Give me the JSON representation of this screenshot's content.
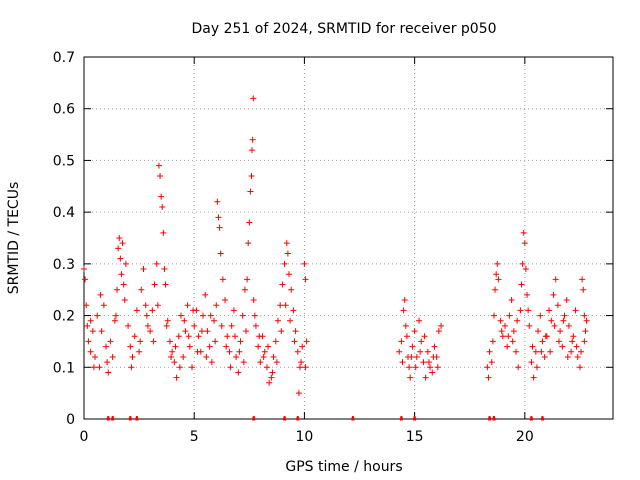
{
  "chart_data": {
    "type": "scatter",
    "title": "Day 251 of 2024, SRMTID for receiver p050",
    "xlabel": "GPS time / hours",
    "ylabel": "SRMTID / TECUs",
    "xlim": [
      0,
      24
    ],
    "ylim": [
      0,
      0.7
    ],
    "x_ticks": [
      0,
      5,
      10,
      15,
      20
    ],
    "y_ticks": [
      0,
      0.1,
      0.2,
      0.3,
      0.4,
      0.5,
      0.6,
      0.7
    ],
    "x_tick_labels": [
      "0",
      "5",
      "10",
      "15",
      "20"
    ],
    "y_tick_labels": [
      "0",
      "0.1",
      "0.2",
      "0.3",
      "0.4",
      "0.5",
      "0.6",
      "0.7"
    ],
    "grid": true,
    "marker": "+",
    "series_color": "#ff0000",
    "series": [
      {
        "name": "SRMTID",
        "active_segments": [
          [
            0.0,
            10.1
          ],
          [
            14.3,
            16.2
          ],
          [
            18.3,
            22.8
          ]
        ],
        "baseline_markers_x": [
          1.1,
          1.3,
          2.1,
          2.4,
          7.7,
          9.1,
          9.7,
          12.2,
          14.4,
          15.0,
          18.4,
          18.6,
          20.3,
          20.8
        ],
        "points": [
          [
            0.0,
            0.29
          ],
          [
            0.05,
            0.27
          ],
          [
            0.1,
            0.22
          ],
          [
            0.15,
            0.18
          ],
          [
            0.2,
            0.15
          ],
          [
            0.3,
            0.13
          ],
          [
            0.4,
            0.17
          ],
          [
            0.5,
            0.12
          ],
          [
            0.6,
            0.2
          ],
          [
            0.7,
            0.1
          ],
          [
            0.8,
            0.17
          ],
          [
            0.9,
            0.22
          ],
          [
            1.0,
            0.14
          ],
          [
            1.1,
            0.09
          ],
          [
            1.2,
            0.15
          ],
          [
            1.3,
            0.12
          ],
          [
            1.4,
            0.19
          ],
          [
            1.5,
            0.25
          ],
          [
            1.55,
            0.33
          ],
          [
            1.6,
            0.35
          ],
          [
            1.65,
            0.31
          ],
          [
            1.7,
            0.28
          ],
          [
            1.75,
            0.34
          ],
          [
            1.8,
            0.26
          ],
          [
            1.9,
            0.3
          ],
          [
            2.0,
            0.18
          ],
          [
            2.1,
            0.14
          ],
          [
            2.2,
            0.12
          ],
          [
            2.3,
            0.16
          ],
          [
            2.4,
            0.21
          ],
          [
            2.5,
            0.13
          ],
          [
            2.6,
            0.25
          ],
          [
            2.7,
            0.29
          ],
          [
            2.8,
            0.22
          ],
          [
            2.9,
            0.18
          ],
          [
            3.0,
            0.17
          ],
          [
            3.1,
            0.21
          ],
          [
            3.2,
            0.26
          ],
          [
            3.3,
            0.3
          ],
          [
            3.4,
            0.49
          ],
          [
            3.45,
            0.47
          ],
          [
            3.5,
            0.43
          ],
          [
            3.55,
            0.41
          ],
          [
            3.6,
            0.36
          ],
          [
            3.65,
            0.29
          ],
          [
            3.7,
            0.26
          ],
          [
            3.8,
            0.19
          ],
          [
            3.9,
            0.15
          ],
          [
            4.0,
            0.13
          ],
          [
            4.1,
            0.11
          ],
          [
            4.2,
            0.08
          ],
          [
            4.3,
            0.16
          ],
          [
            4.4,
            0.2
          ],
          [
            4.5,
            0.12
          ],
          [
            4.6,
            0.17
          ],
          [
            4.7,
            0.22
          ],
          [
            4.8,
            0.14
          ],
          [
            4.9,
            0.1
          ],
          [
            5.0,
            0.18
          ],
          [
            5.1,
            0.21
          ],
          [
            5.2,
            0.16
          ],
          [
            5.3,
            0.13
          ],
          [
            5.4,
            0.2
          ],
          [
            5.5,
            0.24
          ],
          [
            5.6,
            0.17
          ],
          [
            5.7,
            0.14
          ],
          [
            5.8,
            0.11
          ],
          [
            5.9,
            0.19
          ],
          [
            6.0,
            0.22
          ],
          [
            6.05,
            0.42
          ],
          [
            6.1,
            0.39
          ],
          [
            6.15,
            0.37
          ],
          [
            6.2,
            0.32
          ],
          [
            6.3,
            0.27
          ],
          [
            6.4,
            0.23
          ],
          [
            6.5,
            0.16
          ],
          [
            6.6,
            0.13
          ],
          [
            6.7,
            0.18
          ],
          [
            6.8,
            0.21
          ],
          [
            6.9,
            0.12
          ],
          [
            7.0,
            0.09
          ],
          [
            7.1,
            0.15
          ],
          [
            7.2,
            0.2
          ],
          [
            7.3,
            0.25
          ],
          [
            7.4,
            0.27
          ],
          [
            7.45,
            0.34
          ],
          [
            7.5,
            0.38
          ],
          [
            7.55,
            0.44
          ],
          [
            7.6,
            0.47
          ],
          [
            7.62,
            0.52
          ],
          [
            7.65,
            0.54
          ],
          [
            7.68,
            0.62
          ],
          [
            7.7,
            0.23
          ],
          [
            7.8,
            0.18
          ],
          [
            7.9,
            0.14
          ],
          [
            8.0,
            0.11
          ],
          [
            8.1,
            0.16
          ],
          [
            8.2,
            0.13
          ],
          [
            8.3,
            0.1
          ],
          [
            8.4,
            0.07
          ],
          [
            8.5,
            0.08
          ],
          [
            8.6,
            0.12
          ],
          [
            8.7,
            0.15
          ],
          [
            8.8,
            0.19
          ],
          [
            8.9,
            0.22
          ],
          [
            9.0,
            0.26
          ],
          [
            9.1,
            0.3
          ],
          [
            9.2,
            0.34
          ],
          [
            9.25,
            0.32
          ],
          [
            9.3,
            0.28
          ],
          [
            9.4,
            0.25
          ],
          [
            9.5,
            0.21
          ],
          [
            9.6,
            0.17
          ],
          [
            9.7,
            0.13
          ],
          [
            9.75,
            0.05
          ],
          [
            9.8,
            0.1
          ],
          [
            9.9,
            0.14
          ],
          [
            10.0,
            0.3
          ],
          [
            10.05,
            0.27
          ],
          [
            10.1,
            0.15
          ],
          [
            0.3,
            0.19
          ],
          [
            0.45,
            0.1
          ],
          [
            0.75,
            0.24
          ],
          [
            1.05,
            0.11
          ],
          [
            1.45,
            0.2
          ],
          [
            1.85,
            0.23
          ],
          [
            2.15,
            0.1
          ],
          [
            2.55,
            0.15
          ],
          [
            2.85,
            0.2
          ],
          [
            3.15,
            0.15
          ],
          [
            3.35,
            0.22
          ],
          [
            3.75,
            0.18
          ],
          [
            3.95,
            0.12
          ],
          [
            4.15,
            0.14
          ],
          [
            4.35,
            0.1
          ],
          [
            4.55,
            0.19
          ],
          [
            4.75,
            0.16
          ],
          [
            4.95,
            0.21
          ],
          [
            5.15,
            0.13
          ],
          [
            5.35,
            0.17
          ],
          [
            5.55,
            0.12
          ],
          [
            5.75,
            0.2
          ],
          [
            5.95,
            0.15
          ],
          [
            6.25,
            0.18
          ],
          [
            6.45,
            0.14
          ],
          [
            6.65,
            0.1
          ],
          [
            6.85,
            0.16
          ],
          [
            7.05,
            0.13
          ],
          [
            7.25,
            0.11
          ],
          [
            7.35,
            0.17
          ],
          [
            7.75,
            0.2
          ],
          [
            7.95,
            0.16
          ],
          [
            8.15,
            0.12
          ],
          [
            8.35,
            0.14
          ],
          [
            8.55,
            0.09
          ],
          [
            8.75,
            0.11
          ],
          [
            8.95,
            0.17
          ],
          [
            9.15,
            0.22
          ],
          [
            9.35,
            0.19
          ],
          [
            9.55,
            0.15
          ],
          [
            9.85,
            0.11
          ],
          [
            10.05,
            0.1
          ],
          [
            14.3,
            0.13
          ],
          [
            14.4,
            0.15
          ],
          [
            14.5,
            0.21
          ],
          [
            14.55,
            0.23
          ],
          [
            14.6,
            0.18
          ],
          [
            14.7,
            0.12
          ],
          [
            14.75,
            0.1
          ],
          [
            14.8,
            0.08
          ],
          [
            14.9,
            0.14
          ],
          [
            15.0,
            0.17
          ],
          [
            15.1,
            0.12
          ],
          [
            15.2,
            0.19
          ],
          [
            15.3,
            0.15
          ],
          [
            15.4,
            0.11
          ],
          [
            15.5,
            0.08
          ],
          [
            15.6,
            0.13
          ],
          [
            15.7,
            0.1
          ],
          [
            15.8,
            0.09
          ],
          [
            15.9,
            0.14
          ],
          [
            16.0,
            0.12
          ],
          [
            16.1,
            0.17
          ],
          [
            16.2,
            0.18
          ],
          [
            14.45,
            0.11
          ],
          [
            14.65,
            0.16
          ],
          [
            14.85,
            0.12
          ],
          [
            15.05,
            0.1
          ],
          [
            15.25,
            0.13
          ],
          [
            15.45,
            0.16
          ],
          [
            15.65,
            0.11
          ],
          [
            15.85,
            0.12
          ],
          [
            16.05,
            0.1
          ],
          [
            18.3,
            0.1
          ],
          [
            18.35,
            0.08
          ],
          [
            18.4,
            0.13
          ],
          [
            18.5,
            0.11
          ],
          [
            18.6,
            0.2
          ],
          [
            18.65,
            0.25
          ],
          [
            18.7,
            0.28
          ],
          [
            18.75,
            0.3
          ],
          [
            18.8,
            0.27
          ],
          [
            18.9,
            0.19
          ],
          [
            19.0,
            0.16
          ],
          [
            19.1,
            0.18
          ],
          [
            19.2,
            0.14
          ],
          [
            19.3,
            0.2
          ],
          [
            19.4,
            0.23
          ],
          [
            19.5,
            0.17
          ],
          [
            19.6,
            0.13
          ],
          [
            19.7,
            0.1
          ],
          [
            19.8,
            0.21
          ],
          [
            19.85,
            0.26
          ],
          [
            19.9,
            0.3
          ],
          [
            19.95,
            0.36
          ],
          [
            20.0,
            0.34
          ],
          [
            20.05,
            0.29
          ],
          [
            20.1,
            0.24
          ],
          [
            20.2,
            0.18
          ],
          [
            20.3,
            0.11
          ],
          [
            20.4,
            0.08
          ],
          [
            20.5,
            0.13
          ],
          [
            20.6,
            0.17
          ],
          [
            20.7,
            0.2
          ],
          [
            20.8,
            0.15
          ],
          [
            20.9,
            0.12
          ],
          [
            21.0,
            0.16
          ],
          [
            21.1,
            0.21
          ],
          [
            21.2,
            0.19
          ],
          [
            21.3,
            0.24
          ],
          [
            21.4,
            0.27
          ],
          [
            21.5,
            0.22
          ],
          [
            21.6,
            0.17
          ],
          [
            21.7,
            0.14
          ],
          [
            21.8,
            0.2
          ],
          [
            21.9,
            0.23
          ],
          [
            22.0,
            0.18
          ],
          [
            22.1,
            0.13
          ],
          [
            22.2,
            0.16
          ],
          [
            22.3,
            0.21
          ],
          [
            22.4,
            0.12
          ],
          [
            22.5,
            0.1
          ],
          [
            22.6,
            0.27
          ],
          [
            22.65,
            0.25
          ],
          [
            22.7,
            0.2
          ],
          [
            22.75,
            0.17
          ],
          [
            22.8,
            0.19
          ],
          [
            18.55,
            0.15
          ],
          [
            18.95,
            0.17
          ],
          [
            19.25,
            0.16
          ],
          [
            19.45,
            0.15
          ],
          [
            19.65,
            0.19
          ],
          [
            20.15,
            0.21
          ],
          [
            20.35,
            0.14
          ],
          [
            20.55,
            0.1
          ],
          [
            20.75,
            0.13
          ],
          [
            20.95,
            0.16
          ],
          [
            21.15,
            0.13
          ],
          [
            21.35,
            0.18
          ],
          [
            21.55,
            0.15
          ],
          [
            21.75,
            0.19
          ],
          [
            21.95,
            0.12
          ],
          [
            22.15,
            0.15
          ],
          [
            22.35,
            0.14
          ],
          [
            22.55,
            0.13
          ],
          [
            22.7,
            0.15
          ]
        ]
      }
    ]
  }
}
